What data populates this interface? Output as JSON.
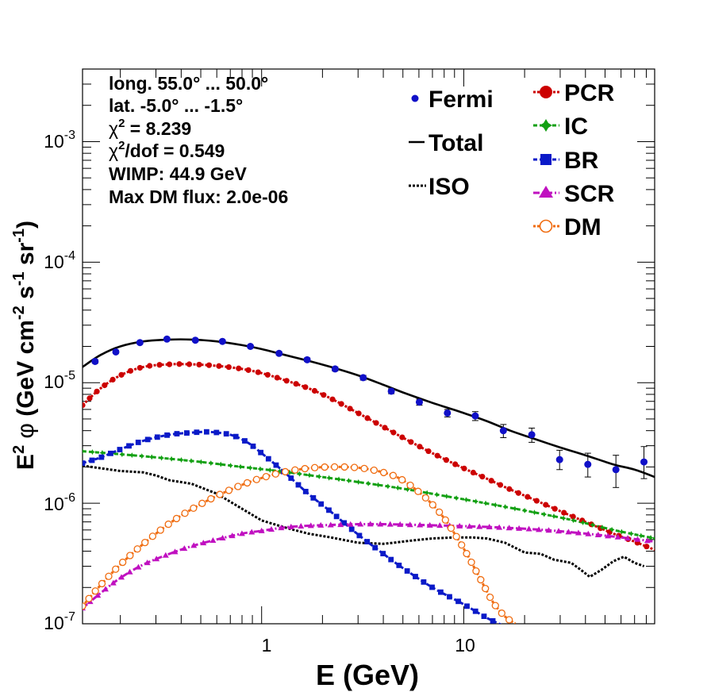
{
  "chart_data": {
    "type": "line",
    "x_scale": "log",
    "y_scale": "log",
    "xlim": [
      0.13,
      88
    ],
    "ylim": [
      1e-07,
      0.004
    ],
    "xlabel": "E (GeV)",
    "ylabel_parts": {
      "e": "E",
      "sq": "2",
      "phi": "φ",
      "open": " (GeV cm",
      "m2": "-2",
      "s": " s",
      "m1a": "-1",
      "sr": " sr",
      "m1b": "-1",
      "close": ")"
    },
    "x_ticks": [
      {
        "value": 1,
        "label": "1"
      },
      {
        "value": 10,
        "label": "10"
      }
    ],
    "y_ticks": [
      {
        "value": 1e-07,
        "base": "10",
        "exp": "-7"
      },
      {
        "value": 1e-06,
        "base": "10",
        "exp": "-6"
      },
      {
        "value": 1e-05,
        "base": "10",
        "exp": "-5"
      },
      {
        "value": 0.0001,
        "base": "10",
        "exp": "-4"
      },
      {
        "value": 0.001,
        "base": "10",
        "exp": "-3"
      }
    ],
    "info": {
      "line1": "long. 55.0° ... 50.0°",
      "line2": "lat. -5.0° ... -1.5°",
      "chi_sym": "χ",
      "chi_sup": "2",
      "chi2_value": " = 8.239",
      "chi2dof_value": "/dof = 0.549",
      "wimp": "WIMP: 44.9 GeV",
      "maxdm": "Max DM flux: 2.0e-06"
    },
    "legend": {
      "left": [
        {
          "name": "fermi",
          "label": "Fermi",
          "color": "#1010c8"
        },
        {
          "name": "total",
          "label": "Total",
          "color": "#000000"
        },
        {
          "name": "iso",
          "label": "ISO",
          "color": "#000000"
        }
      ],
      "right": [
        {
          "name": "pcr",
          "label": "PCR",
          "color": "#cc0000"
        },
        {
          "name": "ic",
          "label": "IC",
          "color": "#12a012"
        },
        {
          "name": "br",
          "label": "BR",
          "color": "#0a1ac8"
        },
        {
          "name": "scr",
          "label": "SCR",
          "color": "#c010c0"
        },
        {
          "name": "dm",
          "label": "DM",
          "color": "#f06c10"
        }
      ]
    },
    "fermi": {
      "x": [
        0.15,
        0.19,
        0.25,
        0.34,
        0.47,
        0.64,
        0.88,
        1.22,
        1.68,
        2.31,
        3.18,
        4.38,
        6.03,
        8.3,
        11.4,
        15.7,
        21.7,
        29.8,
        41.1,
        56.6,
        77.9
      ],
      "y": [
        1.5e-05,
        1.8e-05,
        2.15e-05,
        2.3e-05,
        2.25e-05,
        2.2e-05,
        2e-05,
        1.75e-05,
        1.55e-05,
        1.3e-05,
        1.1e-05,
        8.5e-06,
        6.9e-06,
        5.6e-06,
        5.3e-06,
        4e-06,
        3.7e-06,
        2.3e-06,
        2.1e-06,
        1.9e-06,
        2.2e-06
      ],
      "err_lo": [
        1.45e-05,
        1.75e-05,
        2.1e-05,
        2.25e-05,
        2.2e-05,
        2.15e-05,
        1.95e-05,
        1.7e-05,
        1.5e-05,
        1.25e-05,
        1.05e-05,
        8.1e-06,
        6.5e-06,
        5.2e-06,
        4.85e-06,
        3.5e-06,
        3.2e-06,
        1.9e-06,
        1.65e-06,
        1.35e-06,
        1.6e-06
      ],
      "err_hi": [
        1.55e-05,
        1.85e-05,
        2.2e-05,
        2.35e-05,
        2.3e-05,
        2.25e-05,
        2.05e-05,
        1.8e-05,
        1.6e-05,
        1.35e-05,
        1.15e-05,
        8.9e-06,
        7.3e-06,
        6e-06,
        5.75e-06,
        4.5e-06,
        4.2e-06,
        2.75e-06,
        2.6e-06,
        2.5e-06,
        2.95e-06
      ]
    },
    "series": [
      {
        "name": "Total",
        "key": "total",
        "color": "#000000",
        "style": "solid",
        "marker": "none",
        "x": [
          0.13,
          0.16,
          0.2,
          0.26,
          0.35,
          0.45,
          0.6,
          0.8,
          1.0,
          1.3,
          1.7,
          2.2,
          3.0,
          4.0,
          5.0,
          7.0,
          10,
          13,
          17,
          22,
          30,
          40,
          55,
          70,
          88
        ],
        "y": [
          1.35e-05,
          1.7e-05,
          2e-05,
          2.2e-05,
          2.28e-05,
          2.28e-05,
          2.2e-05,
          2.05e-05,
          1.9e-05,
          1.7e-05,
          1.52e-05,
          1.35e-05,
          1.15e-05,
          9.6e-06,
          8.3e-06,
          6.8e-06,
          5.6e-06,
          4.8e-06,
          4e-06,
          3.45e-06,
          2.9e-06,
          2.5e-06,
          2.1e-06,
          1.9e-06,
          1.65e-06
        ]
      },
      {
        "name": "ISO",
        "key": "iso",
        "color": "#000000",
        "style": "dotted",
        "marker": "none",
        "x": [
          0.13,
          0.16,
          0.2,
          0.26,
          0.3,
          0.35,
          0.45,
          0.6,
          0.8,
          1.0,
          1.3,
          1.7,
          2.2,
          3.0,
          4.0,
          4.5,
          5.5,
          7,
          9,
          11,
          13,
          16,
          20,
          24,
          28,
          34,
          38,
          42,
          48,
          55,
          62,
          70,
          78
        ],
        "y": [
          2.05e-06,
          1.95e-06,
          1.85e-06,
          1.8e-06,
          1.7e-06,
          1.55e-06,
          1.45e-06,
          1.2e-06,
          9e-07,
          7.2e-07,
          6.3e-07,
          5.6e-07,
          5.2e-07,
          4.7e-07,
          4.6e-07,
          4.7e-07,
          4.9e-07,
          5.1e-07,
          5.2e-07,
          5.2e-07,
          5.1e-07,
          4.7e-07,
          3.9e-07,
          3.8e-07,
          3.4e-07,
          3.2e-07,
          2.8e-07,
          2.45e-07,
          2.8e-07,
          3.3e-07,
          3.6e-07,
          3.2e-07,
          3e-07
        ]
      },
      {
        "name": "PCR",
        "key": "pcr",
        "color": "#cc0000",
        "style": "dotted",
        "marker": "circle",
        "x": [
          0.13,
          0.16,
          0.2,
          0.26,
          0.35,
          0.45,
          0.6,
          0.8,
          1.0,
          1.3,
          1.7,
          2.2,
          3.0,
          4.0,
          5.0,
          7.0,
          10,
          13,
          17,
          22,
          30,
          40,
          55,
          70,
          88
        ],
        "y": [
          6.5e-06,
          9e-06,
          1.15e-05,
          1.35e-05,
          1.42e-05,
          1.42e-05,
          1.38e-05,
          1.3e-05,
          1.2e-05,
          1.05e-05,
          9e-06,
          7.4e-06,
          5.6e-06,
          4.3e-06,
          3.5e-06,
          2.6e-06,
          1.95e-06,
          1.6e-06,
          1.3e-06,
          1.08e-06,
          8.6e-07,
          7e-07,
          5.6e-07,
          4.8e-07,
          4.1e-07
        ]
      },
      {
        "name": "IC",
        "key": "ic",
        "color": "#12a012",
        "style": "dashed",
        "marker": "star",
        "x": [
          0.13,
          0.2,
          0.3,
          0.5,
          0.8,
          1.2,
          2,
          3,
          5,
          8,
          12,
          20,
          35,
          55,
          88
        ],
        "y": [
          2.7e-06,
          2.55e-06,
          2.4e-06,
          2.2e-06,
          2e-06,
          1.85e-06,
          1.65e-06,
          1.5e-06,
          1.32e-06,
          1.15e-06,
          1.02e-06,
          8.7e-07,
          7.2e-07,
          6e-07,
          5.1e-07
        ]
      },
      {
        "name": "BR",
        "key": "br",
        "color": "#0a1ac8",
        "style": "dashed",
        "marker": "square",
        "x": [
          0.13,
          0.16,
          0.2,
          0.26,
          0.35,
          0.45,
          0.55,
          0.7,
          0.85,
          1.0,
          1.3,
          1.7,
          2.2,
          3.0,
          4.0,
          5.0,
          7.0,
          10,
          13,
          16
        ],
        "y": [
          2.15e-06,
          2.4e-06,
          2.8e-06,
          3.3e-06,
          3.7e-06,
          3.85e-06,
          3.9e-06,
          3.7e-06,
          3.2e-06,
          2.6e-06,
          1.8e-06,
          1.2e-06,
          8.5e-07,
          5.5e-07,
          3.8e-07,
          2.9e-07,
          2e-07,
          1.45e-07,
          1.12e-07,
          9.5e-08
        ]
      },
      {
        "name": "SCR",
        "key": "scr",
        "color": "#c010c0",
        "style": "dashdot",
        "marker": "triangle",
        "x": [
          0.13,
          0.16,
          0.2,
          0.26,
          0.35,
          0.45,
          0.6,
          0.8,
          1.0,
          1.3,
          1.7,
          2.2,
          3.0,
          4.0,
          6.0,
          10,
          15,
          25,
          40,
          60,
          88
        ],
        "y": [
          1.35e-07,
          1.8e-07,
          2.4e-07,
          3.1e-07,
          3.8e-07,
          4.4e-07,
          5e-07,
          5.6e-07,
          5.9e-07,
          6.3e-07,
          6.5e-07,
          6.6e-07,
          6.7e-07,
          6.7e-07,
          6.6e-07,
          6.45e-07,
          6.3e-07,
          6e-07,
          5.6e-07,
          5.2e-07,
          4.8e-07
        ]
      },
      {
        "name": "DM",
        "key": "dm",
        "color": "#f06c10",
        "style": "dotted",
        "marker": "opencircle",
        "x": [
          0.13,
          0.16,
          0.2,
          0.26,
          0.35,
          0.45,
          0.6,
          0.8,
          1.0,
          1.3,
          1.7,
          2.2,
          3.0,
          4.0,
          5.0,
          6.5,
          8.0,
          10,
          12,
          14,
          16,
          18
        ],
        "y": [
          1.4e-07,
          2.1e-07,
          3.1e-07,
          4.6e-07,
          6.8e-07,
          8.9e-07,
          1.15e-06,
          1.42e-06,
          1.62e-06,
          1.82e-06,
          1.95e-06,
          2e-06,
          1.97e-06,
          1.8e-06,
          1.55e-06,
          1.1e-06,
          7.5e-07,
          4.2e-07,
          2.4e-07,
          1.5e-07,
          1.15e-07,
          1e-07
        ]
      }
    ]
  }
}
